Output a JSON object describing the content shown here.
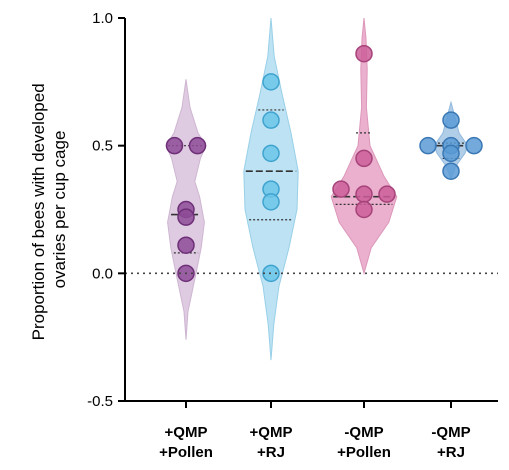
{
  "chart_data": {
    "type": "violin",
    "title": "",
    "xlabel": "",
    "ylabel": "Proportion of bees with developed ovaries per cup cage",
    "ylabel_lines": [
      "Proportion of bees with developed",
      "ovaries per cup cage"
    ],
    "ylim": [
      -0.5,
      1.0
    ],
    "yticks": [
      -0.5,
      0.0,
      0.5,
      1.0
    ],
    "ytick_labels": [
      "-0.5",
      "0.0",
      "0.5",
      "1.0"
    ],
    "reference_line": 0.0,
    "grid": false,
    "legend": "none",
    "groups": [
      {
        "label_lines": [
          "+QMP",
          "+Pollen"
        ],
        "fill": "#dcc6de",
        "edge": "#c9aecd",
        "marker": "#8e4b97",
        "marker_edge": "#6e2f78",
        "points": [
          0.5,
          0.5,
          0.25,
          0.22,
          0.11,
          0.0
        ],
        "median": 0.23,
        "q1": 0.08,
        "q3": 0.5,
        "range": [
          -0.26,
          0.76
        ],
        "widths": [
          [
            -0.26,
            0
          ],
          [
            -0.15,
            0.05
          ],
          [
            0.0,
            0.25
          ],
          [
            0.1,
            0.38
          ],
          [
            0.2,
            0.46
          ],
          [
            0.3,
            0.34
          ],
          [
            0.36,
            0.22
          ],
          [
            0.45,
            0.36
          ],
          [
            0.5,
            0.5
          ],
          [
            0.55,
            0.3
          ],
          [
            0.65,
            0.1
          ],
          [
            0.76,
            0
          ]
        ]
      },
      {
        "label_lines": [
          "+QMP",
          "+RJ"
        ],
        "fill": "#b5dff2",
        "edge": "#8fcbe6",
        "marker": "#6cc6e8",
        "marker_edge": "#3fa3cf",
        "points": [
          0.75,
          0.6,
          0.47,
          0.33,
          0.28,
          0.0
        ],
        "median": 0.4,
        "q1": 0.21,
        "q3": 0.64,
        "range": [
          -0.34,
          1.0
        ],
        "widths": [
          [
            -0.34,
            0
          ],
          [
            -0.2,
            0.07
          ],
          [
            -0.05,
            0.2
          ],
          [
            0.1,
            0.45
          ],
          [
            0.25,
            0.65
          ],
          [
            0.4,
            0.68
          ],
          [
            0.55,
            0.5
          ],
          [
            0.7,
            0.28
          ],
          [
            0.85,
            0.08
          ],
          [
            1.0,
            0
          ]
        ]
      },
      {
        "label_lines": [
          "-QMP",
          "+Pollen"
        ],
        "fill": "#e9a8c9",
        "edge": "#d98cb3",
        "marker": "#cb5e98",
        "marker_edge": "#a6437a",
        "points": [
          0.86,
          0.45,
          0.33,
          0.31,
          0.31,
          0.25
        ],
        "median": 0.3,
        "q1": 0.27,
        "q3": 0.55,
        "range": [
          0.0,
          1.0
        ],
        "widths": [
          [
            0.0,
            0
          ],
          [
            0.1,
            0.18
          ],
          [
            0.2,
            0.62
          ],
          [
            0.3,
            0.82
          ],
          [
            0.38,
            0.5
          ],
          [
            0.5,
            0.15
          ],
          [
            0.65,
            0.06
          ],
          [
            0.8,
            0.08
          ],
          [
            0.92,
            0.05
          ],
          [
            1.0,
            0
          ]
        ]
      },
      {
        "label_lines": [
          "-QMP",
          "+RJ"
        ],
        "fill": "#a9c9e6",
        "edge": "#86b1da",
        "marker": "#5b9bd5",
        "marker_edge": "#3a78b5",
        "points": [
          0.6,
          0.5,
          0.5,
          0.5,
          0.47,
          0.4
        ],
        "median": 0.5,
        "q1": 0.45,
        "q3": 0.51,
        "range": [
          0.37,
          0.67
        ],
        "widths": [
          [
            0.37,
            0
          ],
          [
            0.42,
            0.12
          ],
          [
            0.47,
            0.35
          ],
          [
            0.5,
            0.42
          ],
          [
            0.55,
            0.2
          ],
          [
            0.6,
            0.12
          ],
          [
            0.67,
            0
          ]
        ]
      }
    ]
  }
}
